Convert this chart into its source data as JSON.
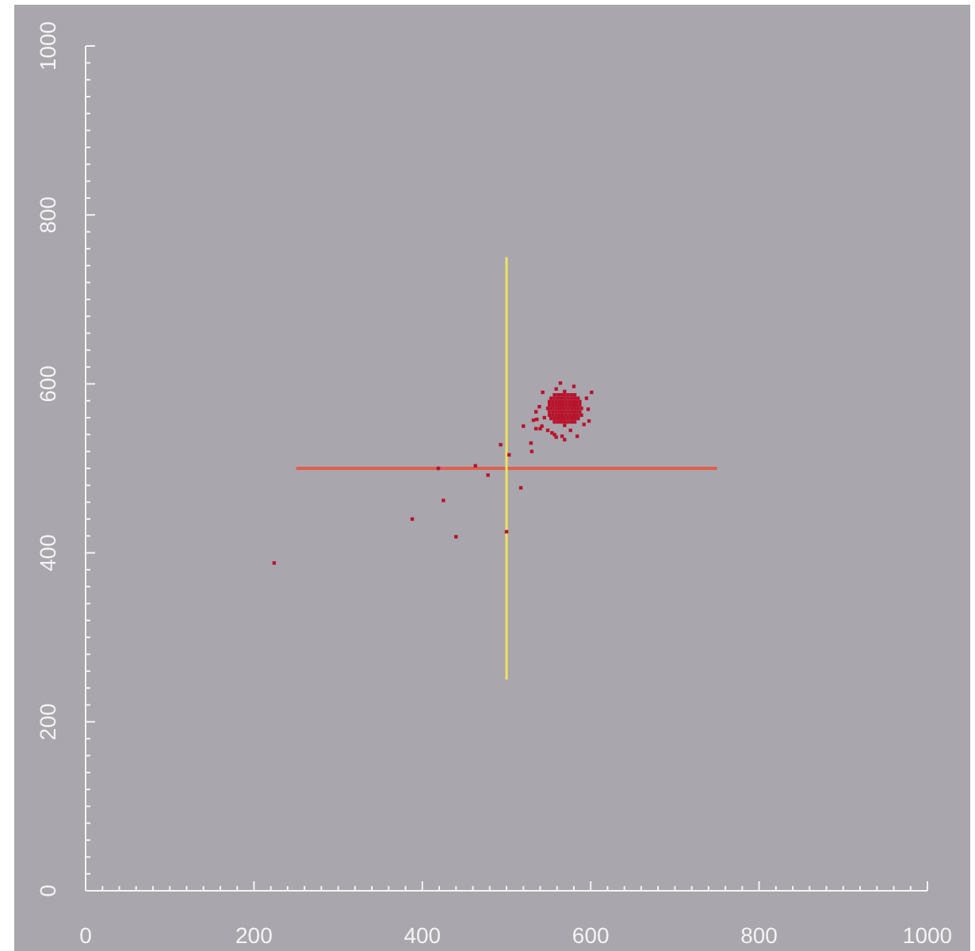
{
  "chart_data": {
    "type": "scatter",
    "marker": "square",
    "xlim": [
      0,
      1000
    ],
    "ylim": [
      0,
      1000
    ],
    "xticks": [
      0,
      {
        "value": 20,
        "label": null
      },
      {
        "value": 40,
        "label": null
      },
      {
        "value": 60,
        "label": null
      },
      {
        "value": 80,
        "label": null
      },
      {
        "value": 100,
        "label": null
      },
      {
        "value": 120,
        "label": null
      },
      {
        "value": 140,
        "label": null
      },
      {
        "value": 160,
        "label": null
      },
      {
        "value": 180,
        "label": null
      },
      200,
      {
        "value": 220,
        "label": null
      },
      {
        "value": 240,
        "label": null
      },
      {
        "value": 260,
        "label": null
      },
      {
        "value": 280,
        "label": null
      },
      {
        "value": 300,
        "label": null
      },
      {
        "value": 320,
        "label": null
      },
      {
        "value": 340,
        "label": null
      },
      {
        "value": 360,
        "label": null
      },
      {
        "value": 380,
        "label": null
      },
      400,
      {
        "value": 420,
        "label": null
      },
      {
        "value": 440,
        "label": null
      },
      {
        "value": 460,
        "label": null
      },
      {
        "value": 480,
        "label": null
      },
      {
        "value": 500,
        "label": null
      },
      {
        "value": 520,
        "label": null
      },
      {
        "value": 540,
        "label": null
      },
      {
        "value": 560,
        "label": null
      },
      {
        "value": 580,
        "label": null
      },
      600,
      {
        "value": 620,
        "label": null
      },
      {
        "value": 640,
        "label": null
      },
      {
        "value": 660,
        "label": null
      },
      {
        "value": 680,
        "label": null
      },
      {
        "value": 700,
        "label": null
      },
      {
        "value": 720,
        "label": null
      },
      {
        "value": 740,
        "label": null
      },
      {
        "value": 760,
        "label": null
      },
      {
        "value": 780,
        "label": null
      },
      800,
      {
        "value": 820,
        "label": null
      },
      {
        "value": 840,
        "label": null
      },
      {
        "value": 860,
        "label": null
      },
      {
        "value": 880,
        "label": null
      },
      {
        "value": 900,
        "label": null
      },
      {
        "value": 920,
        "label": null
      },
      {
        "value": 940,
        "label": null
      },
      {
        "value": 960,
        "label": null
      },
      {
        "value": 980,
        "label": null
      },
      1000
    ],
    "yticks": [
      0,
      {
        "value": 20,
        "label": null
      },
      {
        "value": 40,
        "label": null
      },
      {
        "value": 60,
        "label": null
      },
      {
        "value": 80,
        "label": null
      },
      {
        "value": 100,
        "label": null
      },
      {
        "value": 120,
        "label": null
      },
      {
        "value": 140,
        "label": null
      },
      {
        "value": 160,
        "label": null
      },
      {
        "value": 180,
        "label": null
      },
      200,
      {
        "value": 220,
        "label": null
      },
      {
        "value": 240,
        "label": null
      },
      {
        "value": 260,
        "label": null
      },
      {
        "value": 280,
        "label": null
      },
      {
        "value": 300,
        "label": null
      },
      {
        "value": 320,
        "label": null
      },
      {
        "value": 340,
        "label": null
      },
      {
        "value": 360,
        "label": null
      },
      {
        "value": 380,
        "label": null
      },
      400,
      {
        "value": 420,
        "label": null
      },
      {
        "value": 440,
        "label": null
      },
      {
        "value": 460,
        "label": null
      },
      {
        "value": 480,
        "label": null
      },
      {
        "value": 500,
        "label": null
      },
      {
        "value": 520,
        "label": null
      },
      {
        "value": 540,
        "label": null
      },
      {
        "value": 560,
        "label": null
      },
      {
        "value": 580,
        "label": null
      },
      600,
      {
        "value": 620,
        "label": null
      },
      {
        "value": 640,
        "label": null
      },
      {
        "value": 660,
        "label": null
      },
      {
        "value": 680,
        "label": null
      },
      {
        "value": 700,
        "label": null
      },
      {
        "value": 720,
        "label": null
      },
      {
        "value": 740,
        "label": null
      },
      {
        "value": 760,
        "label": null
      },
      {
        "value": 780,
        "label": null
      },
      800,
      {
        "value": 820,
        "label": null
      },
      {
        "value": 840,
        "label": null
      },
      {
        "value": 860,
        "label": null
      },
      {
        "value": 880,
        "label": null
      },
      {
        "value": 900,
        "label": null
      },
      {
        "value": 920,
        "label": null
      },
      {
        "value": 940,
        "label": null
      },
      {
        "value": 960,
        "label": null
      },
      {
        "value": 980,
        "label": null
      },
      1000
    ],
    "series": [
      {
        "type": "line",
        "marker": "none",
        "color": "#e0604c",
        "x": [
          250,
          750
        ],
        "values": [
          500,
          500
        ]
      },
      {
        "type": "line",
        "marker": "none",
        "color": "#f2e45c",
        "x": [
          500,
          500
        ],
        "values": [
          250,
          750
        ]
      },
      {
        "color": "#b8142c",
        "x": [
          224,
          388,
          425,
          440,
          419,
          463,
          478,
          500,
          517,
          493,
          503,
          529,
          530,
          520,
          564,
          580,
          601,
          543,
          559,
          595,
          539,
          535,
          597,
          532,
          542,
          549,
          566,
          569,
          557,
          584,
          598,
          592,
          576,
          589,
          545,
          540,
          535,
          559,
          554,
          536,
          569,
          557,
          561,
          565,
          569,
          573,
          577,
          581,
          553,
          557,
          561,
          565,
          569,
          573,
          577,
          581,
          585,
          551,
          555,
          559,
          563,
          567,
          571,
          575,
          579,
          583,
          587,
          551,
          555,
          559,
          563,
          567,
          571,
          575,
          579,
          583,
          587,
          549,
          553,
          557,
          561,
          565,
          569,
          573,
          577,
          581,
          585,
          589,
          551,
          555,
          559,
          563,
          567,
          571,
          575,
          579,
          583,
          587,
          551,
          555,
          559,
          563,
          567,
          571,
          575,
          579,
          583,
          587,
          553,
          557,
          561,
          565,
          569,
          573,
          577,
          581,
          585,
          557,
          561,
          565,
          569,
          573,
          577,
          581,
          569
        ],
        "values": [
          388,
          440,
          462,
          419,
          500,
          503,
          492,
          425,
          477,
          528,
          516,
          530,
          520,
          550,
          601,
          597,
          590,
          590,
          594,
          583,
          573,
          567,
          570,
          557,
          550,
          545,
          538,
          534,
          540,
          538,
          556,
          552,
          545,
          563,
          560,
          547,
          547,
          537,
          542,
          558,
          551,
          555,
          555,
          555,
          555,
          555,
          555,
          555,
          559,
          559,
          559,
          559,
          559,
          559,
          559,
          559,
          559,
          563,
          563,
          563,
          563,
          563,
          563,
          563,
          563,
          563,
          563,
          567,
          567,
          567,
          567,
          567,
          567,
          567,
          567,
          567,
          567,
          571,
          571,
          571,
          571,
          571,
          571,
          571,
          571,
          571,
          571,
          571,
          575,
          575,
          575,
          575,
          575,
          575,
          575,
          575,
          575,
          575,
          579,
          579,
          579,
          579,
          579,
          579,
          579,
          579,
          579,
          579,
          583,
          583,
          583,
          583,
          583,
          583,
          583,
          583,
          583,
          587,
          587,
          587,
          587,
          587,
          587,
          587,
          591
        ]
      }
    ]
  }
}
